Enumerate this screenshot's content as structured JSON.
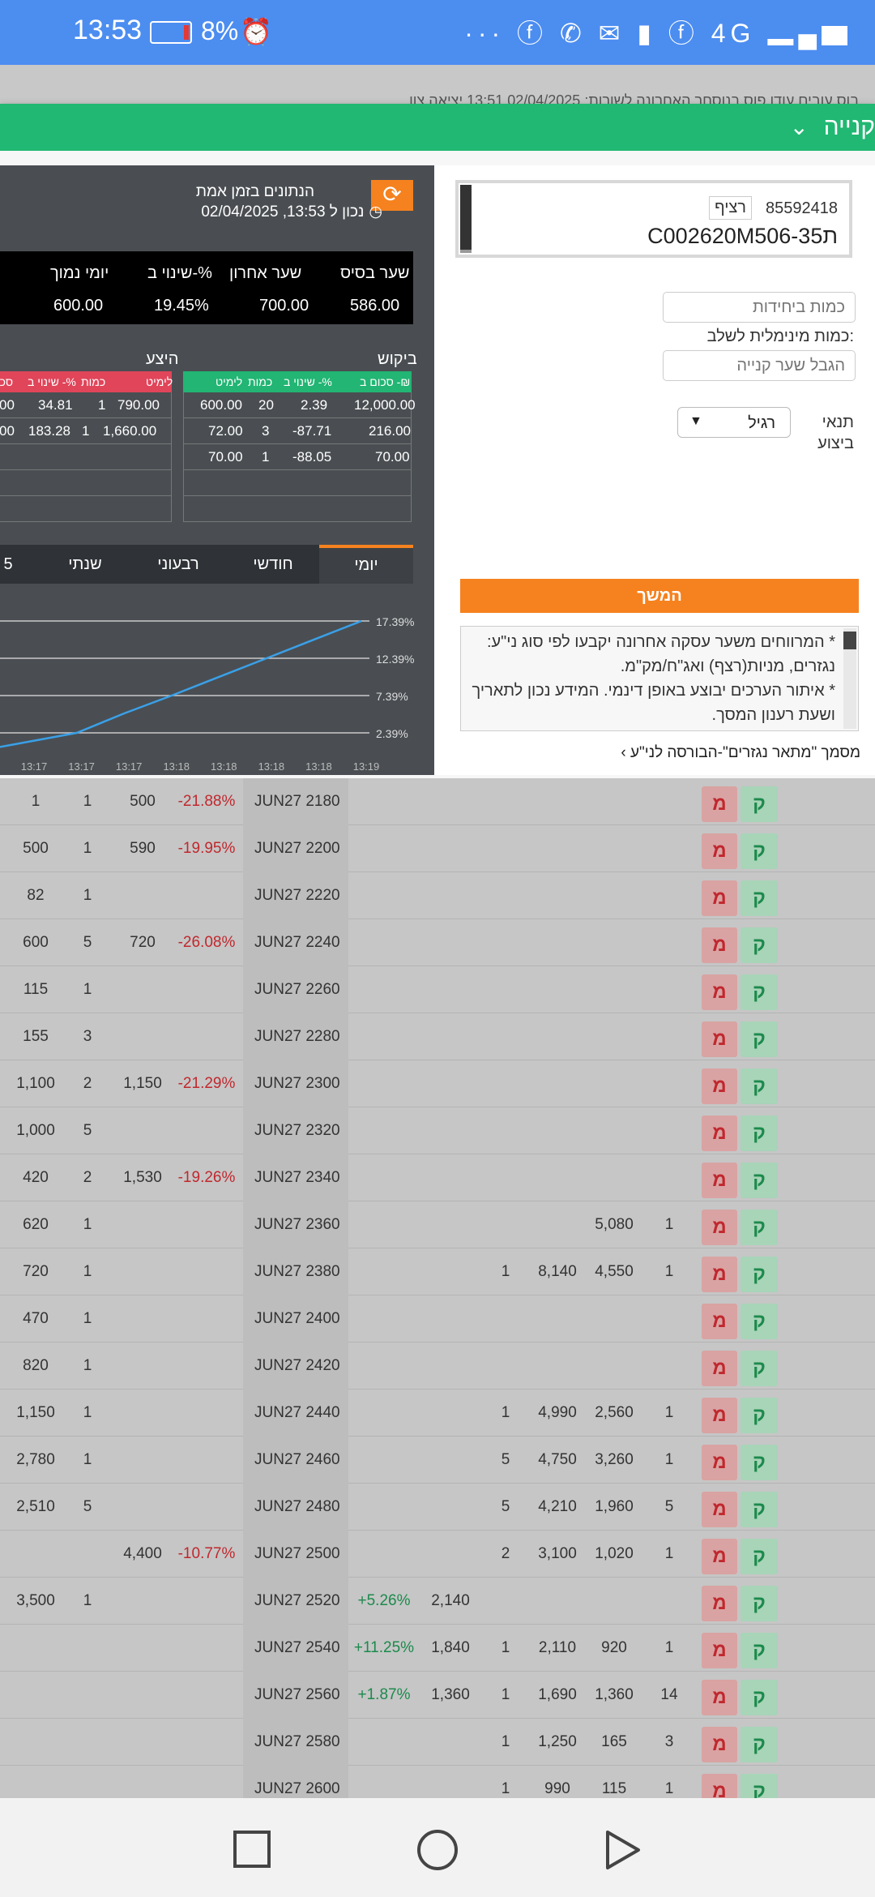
{
  "status_bar": {
    "time": "13:53",
    "battery_pct": "8%",
    "icons": "··· ⓕ ✆ ✉ ▮ ⓕ 4G ▂▄▆"
  },
  "bg_header": {
    "text": "בוס עובים עודו פוס   בנוסחר האחרונה לשורות: 02/04/2025   13:51   יציאה   צוו"
  },
  "modal": {
    "title": "קנייה",
    "security": {
      "number": "85592418",
      "tag": "רציף",
      "code": "C002620M506-35ת"
    },
    "qty_placeholder": "כמות ביחידות",
    "min_qty_label": "כמות מינימלית לשלב:",
    "limit_placeholder": "הגבל שער קנייה",
    "condition_label": "תנאי ביצוע",
    "condition_value": "רגיל",
    "continue_label": "המשך",
    "notes": [
      "* המרווחים משער עסקה אחרונה יקבעו לפי סוג ני\"ע: נגזרים, מניות(רצף) ואג\"ח/מק\"מ.",
      "* איתור הערכים יבוצע באופן דינמי. המידע נכון לתאריך ושעת רענון המסך."
    ],
    "doc_link": "מסמך \"מתאר נגזרים\"-הבורסה לני\"ע ›"
  },
  "market": {
    "realtime_label": "הנתונים בזמן אמת",
    "realtime_time": "נכון ל 13:53, 02/04/2025",
    "summary_headers": [
      "שער בסיס",
      "שער אחרון",
      "שינוי ב-%",
      "יומי נמוך"
    ],
    "summary_values": [
      "586.00",
      "700.00",
      "19.45%",
      "600.00"
    ],
    "bid_label": "ביקוש",
    "ask_label": "היצע",
    "bid_headers": [
      "סכום ב -₪",
      "שינוי ב -%",
      "כמות",
      "לימיט"
    ],
    "ask_headers": [
      "לימיט",
      "כמות",
      "שינוי ב -%",
      "סכו"
    ],
    "bid_rows": [
      [
        "12,000.00",
        "2.39",
        "20",
        "600.00"
      ],
      [
        "216.00",
        "-87.71",
        "3",
        "72.00"
      ],
      [
        "70.00",
        "-88.05",
        "1",
        "70.00"
      ]
    ],
    "ask_rows": [
      [
        "790.00",
        "1",
        "34.81",
        "00"
      ],
      [
        "1,660.00",
        "1",
        "183.28",
        "00"
      ]
    ],
    "tabs": [
      "יומי",
      "חודשי",
      "רבעוני",
      "שנתי",
      "5"
    ],
    "active_tab": 0
  },
  "chart_data": {
    "type": "line",
    "x": [
      "13:17",
      "13:17",
      "13:17",
      "13:18",
      "13:18",
      "13:18",
      "13:18",
      "13:19"
    ],
    "y_ticks": [
      "17.39%",
      "12.39%",
      "7.39%",
      "2.39%"
    ],
    "series": [
      {
        "values": [
          0.5,
          2.39,
          5.0,
          7.39,
          9.9,
          12.39,
          14.9,
          17.39
        ]
      }
    ],
    "ylim": [
      2.39,
      17.39
    ],
    "grid": true,
    "line_color": "#3aa0e8"
  },
  "table_rows": [
    {
      "c1": "1",
      "c2": "1",
      "c3": "500",
      "c4": "-21.88%",
      "strike": "JUN27 2180",
      "c6": "",
      "c7": "",
      "c8": "",
      "c9": "",
      "c10": "",
      "c11": ""
    },
    {
      "c1": "500",
      "c2": "1",
      "c3": "590",
      "c4": "-19.95%",
      "strike": "JUN27 2200",
      "c6": "",
      "c7": "",
      "c8": "",
      "c9": "",
      "c10": "",
      "c11": ""
    },
    {
      "c1": "82",
      "c2": "1",
      "c3": "",
      "c4": "",
      "strike": "JUN27 2220",
      "c6": "",
      "c7": "",
      "c8": "",
      "c9": "",
      "c10": "",
      "c11": ""
    },
    {
      "c1": "600",
      "c2": "5",
      "c3": "720",
      "c4": "-26.08%",
      "strike": "JUN27 2240",
      "c6": "",
      "c7": "",
      "c8": "",
      "c9": "",
      "c10": "",
      "c11": ""
    },
    {
      "c1": "115",
      "c2": "1",
      "c3": "",
      "c4": "",
      "strike": "JUN27 2260",
      "c6": "",
      "c7": "",
      "c8": "",
      "c9": "",
      "c10": "",
      "c11": ""
    },
    {
      "c1": "155",
      "c2": "3",
      "c3": "",
      "c4": "",
      "strike": "JUN27 2280",
      "c6": "",
      "c7": "",
      "c8": "",
      "c9": "",
      "c10": "",
      "c11": ""
    },
    {
      "c1": "1,100",
      "c2": "2",
      "c3": "1,150",
      "c4": "-21.29%",
      "strike": "JUN27 2300",
      "c6": "",
      "c7": "",
      "c8": "",
      "c9": "",
      "c10": "",
      "c11": ""
    },
    {
      "c1": "1,000",
      "c2": "5",
      "c3": "",
      "c4": "",
      "strike": "JUN27 2320",
      "c6": "",
      "c7": "",
      "c8": "",
      "c9": "",
      "c10": "",
      "c11": ""
    },
    {
      "c1": "420",
      "c2": "2",
      "c3": "1,530",
      "c4": "-19.26%",
      "strike": "JUN27 2340",
      "c6": "",
      "c7": "",
      "c8": "",
      "c9": "",
      "c10": "",
      "c11": ""
    },
    {
      "c1": "620",
      "c2": "1",
      "c3": "",
      "c4": "",
      "strike": "JUN27 2360",
      "c6": "",
      "c7": "",
      "c8": "",
      "c9": "",
      "c10": "5,080",
      "c11": "1"
    },
    {
      "c1": "720",
      "c2": "1",
      "c3": "",
      "c4": "",
      "strike": "JUN27 2380",
      "c6": "",
      "c7": "",
      "c8": "1",
      "c9": "8,140",
      "c10": "4,550",
      "c11": "1"
    },
    {
      "c1": "470",
      "c2": "1",
      "c3": "",
      "c4": "",
      "strike": "JUN27 2400",
      "c6": "",
      "c7": "",
      "c8": "",
      "c9": "",
      "c10": "",
      "c11": ""
    },
    {
      "c1": "820",
      "c2": "1",
      "c3": "",
      "c4": "",
      "strike": "JUN27 2420",
      "c6": "",
      "c7": "",
      "c8": "",
      "c9": "",
      "c10": "",
      "c11": ""
    },
    {
      "c1": "1,150",
      "c2": "1",
      "c3": "",
      "c4": "",
      "strike": "JUN27 2440",
      "c6": "",
      "c7": "",
      "c8": "1",
      "c9": "4,990",
      "c10": "2,560",
      "c11": "1"
    },
    {
      "c1": "2,780",
      "c2": "1",
      "c3": "",
      "c4": "",
      "strike": "JUN27 2460",
      "c6": "",
      "c7": "",
      "c8": "5",
      "c9": "4,750",
      "c10": "3,260",
      "c11": "1"
    },
    {
      "c1": "2,510",
      "c2": "5",
      "c3": "",
      "c4": "",
      "strike": "JUN27 2480",
      "c6": "",
      "c7": "",
      "c8": "5",
      "c9": "4,210",
      "c10": "1,960",
      "c11": "5"
    },
    {
      "c1": "",
      "c2": "",
      "c3": "4,400",
      "c4": "-10.77%",
      "strike": "JUN27 2500",
      "c6": "",
      "c7": "",
      "c8": "2",
      "c9": "3,100",
      "c10": "1,020",
      "c11": "1"
    },
    {
      "c1": "3,500",
      "c2": "1",
      "c3": "",
      "c4": "",
      "strike": "JUN27 2520",
      "c5": "+5.26%",
      "c6": "2,140",
      "c7": "",
      "c8": "",
      "c9": "",
      "c10": "",
      "c11": ""
    },
    {
      "c1": "",
      "c2": "",
      "c3": "",
      "c4": "",
      "strike": "JUN27 2540",
      "c5": "+11.25%",
      "c6": "1,840",
      "c7": "",
      "c8": "1",
      "c9": "2,110",
      "c10": "920",
      "c11": "1"
    },
    {
      "c1": "",
      "c2": "",
      "c3": "",
      "c4": "",
      "strike": "JUN27 2560",
      "c5": "+1.87%",
      "c6": "1,360",
      "c7": "",
      "c8": "1",
      "c9": "1,690",
      "c10": "1,360",
      "c11": "14"
    },
    {
      "c1": "",
      "c2": "",
      "c3": "",
      "c4": "",
      "strike": "JUN27 2580",
      "c6": "",
      "c7": "",
      "c8": "1",
      "c9": "1,250",
      "c10": "165",
      "c11": "3"
    },
    {
      "c1": "",
      "c2": "",
      "c3": "",
      "c4": "",
      "strike": "JUN27 2600",
      "c6": "",
      "c7": "",
      "c8": "1",
      "c9": "990",
      "c10": "115",
      "c11": "1"
    }
  ],
  "row_buttons": {
    "sell": "מ",
    "buy": "ק"
  },
  "nav": {
    "recent": "□",
    "home": "○",
    "back": "▷"
  }
}
